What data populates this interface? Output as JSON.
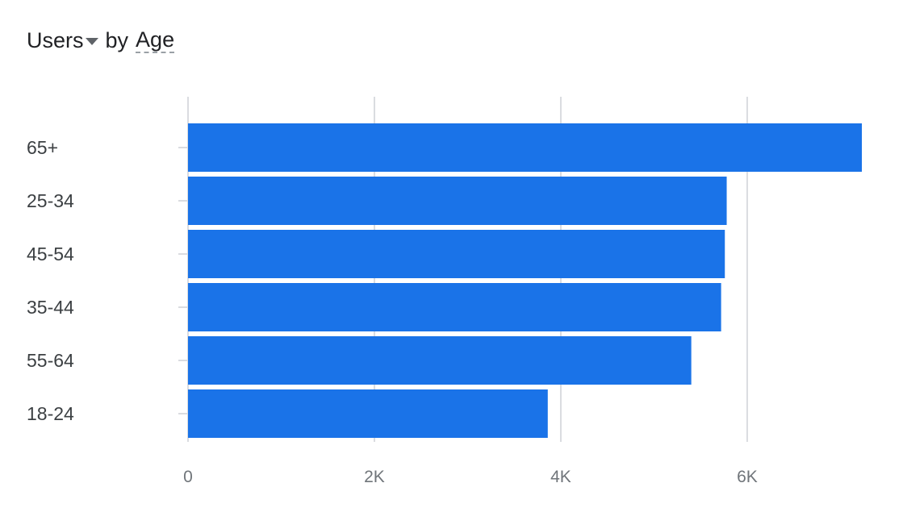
{
  "header": {
    "metric_label": "Users",
    "by_label": "by",
    "dimension_label": "Age"
  },
  "colors": {
    "bar": "#1a73e8",
    "grid": "#dadce0"
  },
  "chart_data": {
    "type": "bar",
    "orientation": "horizontal",
    "title": "Users by Age",
    "categories": [
      "65+",
      "25-34",
      "45-54",
      "35-44",
      "55-64",
      "18-24"
    ],
    "values": [
      7230,
      5780,
      5760,
      5720,
      5400,
      3860
    ],
    "xlim": [
      0,
      7230
    ],
    "x_ticks": [
      0,
      2000,
      4000,
      6000
    ],
    "x_tick_labels": [
      "0",
      "2K",
      "4K",
      "6K"
    ],
    "xlabel": "",
    "ylabel": "",
    "grid": true,
    "legend": false
  }
}
